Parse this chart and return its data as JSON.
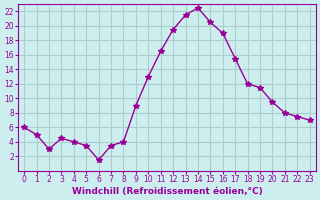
{
  "x": [
    0,
    1,
    2,
    3,
    4,
    5,
    6,
    7,
    8,
    9,
    10,
    11,
    12,
    13,
    14,
    15,
    16,
    17,
    18,
    19,
    20,
    21,
    22,
    23
  ],
  "y": [
    6,
    5,
    3,
    4.5,
    4,
    3.5,
    1.5,
    3.5,
    4,
    9,
    13,
    16.5,
    19.5,
    21.5,
    22.5,
    20.5,
    19,
    15.5,
    12,
    11.5,
    9.5,
    8,
    7.5,
    7
  ],
  "line_color": "#990099",
  "marker": "*",
  "marker_size": 4,
  "bg_color": "#cceeee",
  "grid_color": "#aacccc",
  "xlabel": "Windchill (Refroidissement éolien,°C)",
  "xlabel_color": "#990099",
  "xlim": [
    -0.5,
    23.5
  ],
  "ylim": [
    0,
    23
  ],
  "yticks": [
    2,
    4,
    6,
    8,
    10,
    12,
    14,
    16,
    18,
    20,
    22
  ],
  "xticks": [
    0,
    1,
    2,
    3,
    4,
    5,
    6,
    7,
    8,
    9,
    10,
    11,
    12,
    13,
    14,
    15,
    16,
    17,
    18,
    19,
    20,
    21,
    22,
    23
  ],
  "tick_color": "#990099",
  "axis_color": "#990099"
}
